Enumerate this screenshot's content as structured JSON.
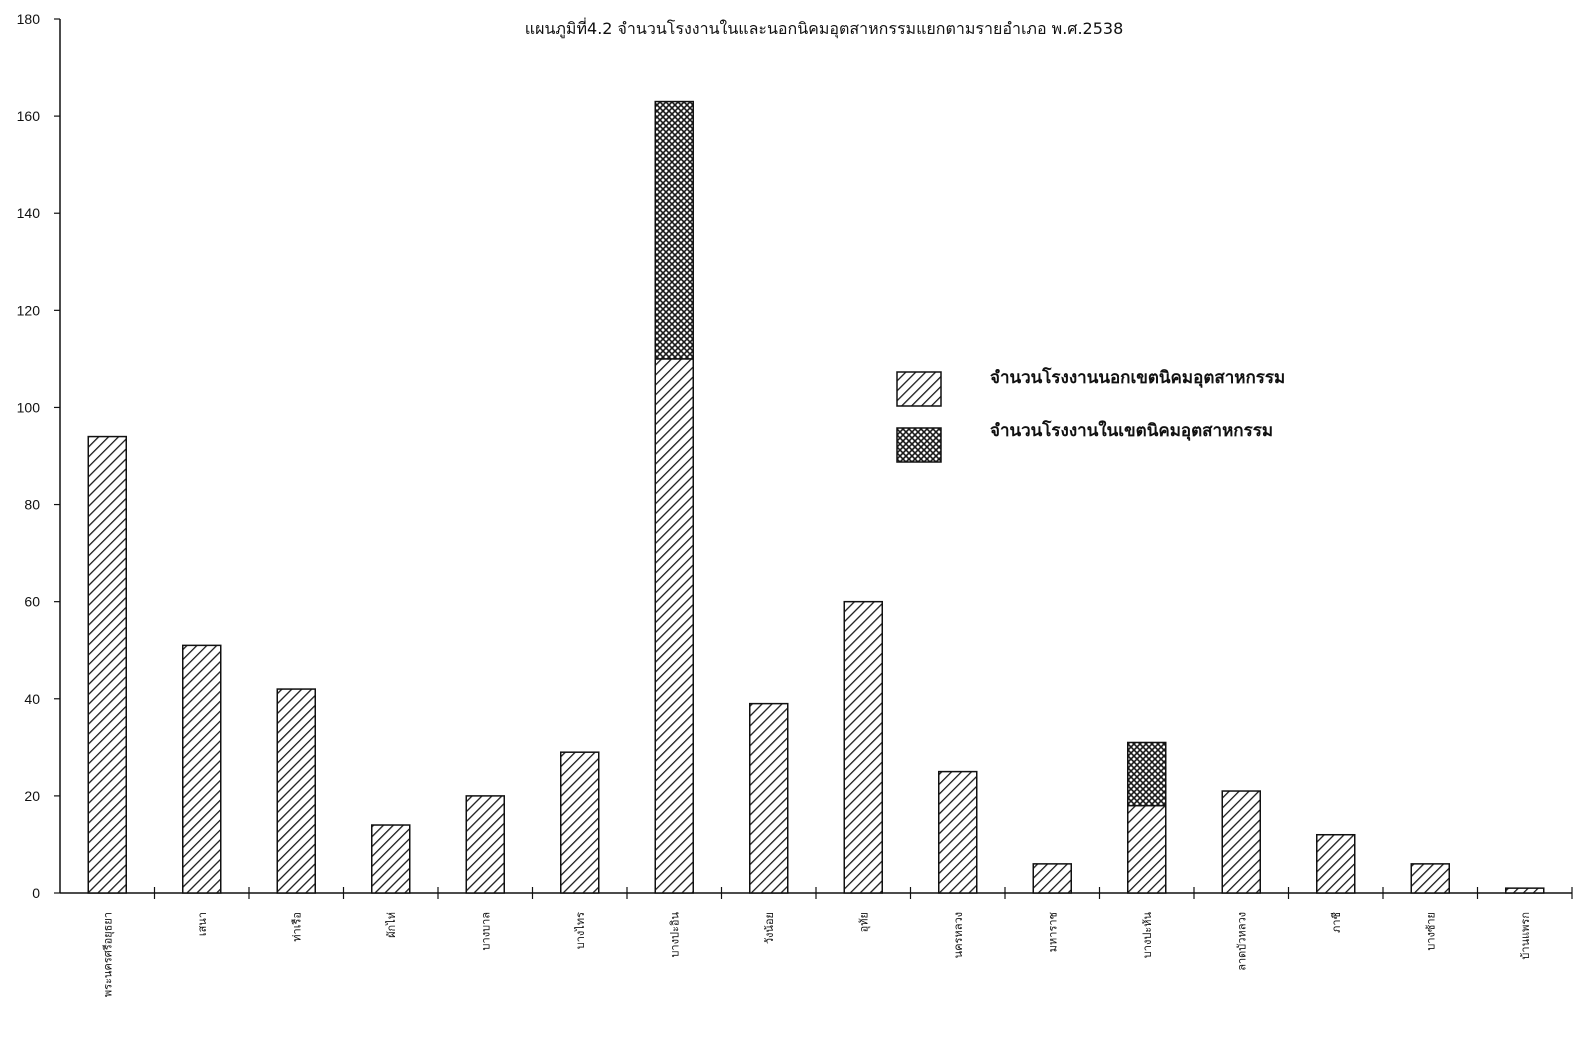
{
  "chart_data": {
    "type": "bar",
    "stacked": true,
    "title": "แผนภูมิที่4.2 จำนวนโรงงานในและนอกนิคมอุตสาหกรรมแยกตามรายอำเภอ พ.ศ.2538",
    "xlabel": "",
    "ylabel": "",
    "ylim": [
      0,
      180
    ],
    "yticks": [
      0,
      20,
      40,
      60,
      80,
      100,
      120,
      140,
      160,
      180
    ],
    "grid": false,
    "legend_position": "right",
    "categories": [
      "พระนครศรีอยุธยา",
      "เสนา",
      "ท่าเรือ",
      "ผักไห่",
      "บางบาล",
      "บางไทร",
      "บางปะอิน",
      "วังน้อย",
      "อุทัย",
      "นครหลวง",
      "มหาราช",
      "บางปะหัน",
      "ลาดบัวหลวง",
      "ภาชี",
      "บางซ้าย",
      "บ้านแพรก"
    ],
    "series": [
      {
        "name": "จำนวนโรงงานนอกเขตนิคมอุตสาหกรรม",
        "pattern": "diagonal-hatch",
        "color": "#1a1a1a",
        "values": [
          94,
          51,
          42,
          14,
          20,
          29,
          110,
          39,
          60,
          25,
          6,
          18,
          21,
          12,
          6,
          1
        ]
      },
      {
        "name": "จำนวนโรงงานในเขตนิคมอุตสาหกรรม",
        "pattern": "cross-hatch",
        "color": "#1a1a1a",
        "values": [
          0,
          0,
          0,
          0,
          0,
          0,
          53,
          0,
          0,
          0,
          0,
          13,
          0,
          0,
          0,
          0
        ]
      }
    ]
  }
}
